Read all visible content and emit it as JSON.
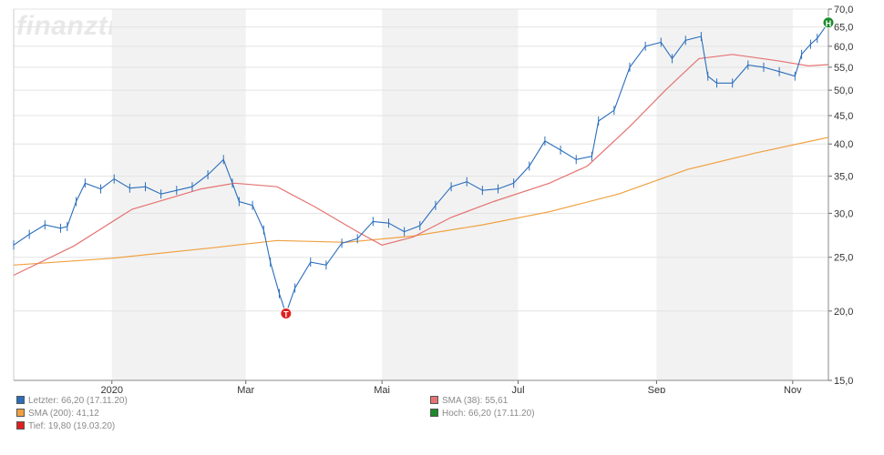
{
  "watermark": "finanztreff.de:",
  "colors": {
    "price": "#2a6ebb",
    "sma38": "#e57373",
    "sma200": "#f0a040",
    "low_marker": "#e02020",
    "high_marker": "#1a8a2a",
    "grid": "#e3e3e3",
    "band": "#f2f2f2",
    "axis_text": "#333333"
  },
  "chart_data": {
    "type": "ohlc_line",
    "y_scale": "log",
    "ylim": [
      15.0,
      70.0
    ],
    "y_ticks": [
      "15,0",
      "20,0",
      "25,0",
      "30,0",
      "35,0",
      "40,0",
      "45,0",
      "50,0",
      "55,0",
      "60,0",
      "65,0",
      "70,0"
    ],
    "x_ticks": [
      {
        "label": "2020",
        "date": "2020-01-01"
      },
      {
        "label": "Mar",
        "date": "2020-03-01"
      },
      {
        "label": "Mai",
        "date": "2020-05-01"
      },
      {
        "label": "Jul",
        "date": "2020-07-01"
      },
      {
        "label": "Sep",
        "date": "2020-09-01"
      },
      {
        "label": "Nov",
        "date": "2020-11-01"
      }
    ],
    "x_range": [
      "2019-11-18",
      "2020-11-17"
    ],
    "shaded_bands": [
      [
        "2020-01-01",
        "2020-03-01"
      ],
      [
        "2020-05-01",
        "2020-07-01"
      ],
      [
        "2020-09-01",
        "2020-11-01"
      ]
    ],
    "price_series": [
      [
        "2019-11-18",
        26.3
      ],
      [
        "2019-11-25",
        27.5
      ],
      [
        "2019-12-02",
        28.6
      ],
      [
        "2019-12-09",
        28.2
      ],
      [
        "2019-12-12",
        28.4
      ],
      [
        "2019-12-16",
        31.5
      ],
      [
        "2019-12-20",
        34.0
      ],
      [
        "2019-12-27",
        33.2
      ],
      [
        "2020-01-02",
        34.6
      ],
      [
        "2020-01-09",
        33.3
      ],
      [
        "2020-01-16",
        33.5
      ],
      [
        "2020-01-23",
        32.5
      ],
      [
        "2020-01-30",
        33.0
      ],
      [
        "2020-02-06",
        33.5
      ],
      [
        "2020-02-13",
        35.2
      ],
      [
        "2020-02-20",
        37.5
      ],
      [
        "2020-02-24",
        34.0
      ],
      [
        "2020-02-27",
        31.5
      ],
      [
        "2020-03-04",
        31.0
      ],
      [
        "2020-03-09",
        28.0
      ],
      [
        "2020-03-12",
        24.5
      ],
      [
        "2020-03-16",
        21.5
      ],
      [
        "2020-03-19",
        19.8
      ],
      [
        "2020-03-23",
        22.0
      ],
      [
        "2020-03-30",
        24.5
      ],
      [
        "2020-04-06",
        24.2
      ],
      [
        "2020-04-13",
        26.5
      ],
      [
        "2020-04-20",
        27.0
      ],
      [
        "2020-04-27",
        29.0
      ],
      [
        "2020-05-04",
        28.8
      ],
      [
        "2020-05-11",
        27.8
      ],
      [
        "2020-05-18",
        28.5
      ],
      [
        "2020-05-25",
        31.0
      ],
      [
        "2020-06-01",
        33.5
      ],
      [
        "2020-06-08",
        34.2
      ],
      [
        "2020-06-15",
        33.0
      ],
      [
        "2020-06-22",
        33.2
      ],
      [
        "2020-06-29",
        34.0
      ],
      [
        "2020-07-06",
        36.5
      ],
      [
        "2020-07-13",
        40.5
      ],
      [
        "2020-07-20",
        39.0
      ],
      [
        "2020-07-27",
        37.5
      ],
      [
        "2020-08-03",
        38.0
      ],
      [
        "2020-08-06",
        44.0
      ],
      [
        "2020-08-13",
        46.0
      ],
      [
        "2020-08-20",
        55.0
      ],
      [
        "2020-08-27",
        60.0
      ],
      [
        "2020-09-03",
        61.0
      ],
      [
        "2020-09-08",
        57.0
      ],
      [
        "2020-09-14",
        61.5
      ],
      [
        "2020-09-21",
        62.5
      ],
      [
        "2020-09-24",
        53.0
      ],
      [
        "2020-09-28",
        51.5
      ],
      [
        "2020-10-05",
        51.5
      ],
      [
        "2020-10-12",
        55.5
      ],
      [
        "2020-10-19",
        55.0
      ],
      [
        "2020-10-26",
        54.0
      ],
      [
        "2020-11-02",
        53.0
      ],
      [
        "2020-11-05",
        58.0
      ],
      [
        "2020-11-09",
        60.5
      ],
      [
        "2020-11-12",
        62.0
      ],
      [
        "2020-11-17",
        66.2
      ]
    ],
    "sma38": [
      [
        "2019-11-18",
        23.2
      ],
      [
        "2019-12-15",
        26.2
      ],
      [
        "2020-01-10",
        30.5
      ],
      [
        "2020-02-10",
        33.2
      ],
      [
        "2020-02-25",
        34.0
      ],
      [
        "2020-03-15",
        33.5
      ],
      [
        "2020-04-01",
        30.8
      ],
      [
        "2020-04-20",
        27.8
      ],
      [
        "2020-05-01",
        26.3
      ],
      [
        "2020-05-15",
        27.2
      ],
      [
        "2020-06-01",
        29.5
      ],
      [
        "2020-06-20",
        31.5
      ],
      [
        "2020-07-15",
        34.0
      ],
      [
        "2020-08-01",
        36.5
      ],
      [
        "2020-08-20",
        43.0
      ],
      [
        "2020-09-05",
        50.0
      ],
      [
        "2020-09-20",
        57.0
      ],
      [
        "2020-10-05",
        58.0
      ],
      [
        "2020-10-25",
        56.5
      ],
      [
        "2020-11-08",
        55.3
      ],
      [
        "2020-11-17",
        55.61
      ]
    ],
    "sma200": [
      [
        "2019-11-18",
        24.2
      ],
      [
        "2020-01-01",
        24.9
      ],
      [
        "2020-02-15",
        26.0
      ],
      [
        "2020-03-15",
        26.8
      ],
      [
        "2020-04-15",
        26.6
      ],
      [
        "2020-05-15",
        27.3
      ],
      [
        "2020-06-15",
        28.6
      ],
      [
        "2020-07-15",
        30.2
      ],
      [
        "2020-08-15",
        32.5
      ],
      [
        "2020-09-15",
        36.0
      ],
      [
        "2020-10-15",
        38.5
      ],
      [
        "2020-11-17",
        41.12
      ]
    ],
    "markers": [
      {
        "label": "T",
        "date": "2020-03-19",
        "value": 19.8,
        "kind": "low"
      },
      {
        "label": "H",
        "date": "2020-11-17",
        "value": 66.2,
        "kind": "high"
      }
    ],
    "legend": [
      {
        "text": "Letzter: 66,20 (17.11.20)",
        "color": "#2a6ebb"
      },
      {
        "text": "SMA (38): 55,61",
        "color": "#e57373"
      },
      {
        "text": "SMA (200): 41,12",
        "color": "#f0a040"
      },
      {
        "text": "Hoch: 66,20 (17.11.20)",
        "color": "#1a8a2a"
      },
      {
        "text": "Tief: 19,80 (19.03.20)",
        "color": "#e02020"
      }
    ]
  }
}
